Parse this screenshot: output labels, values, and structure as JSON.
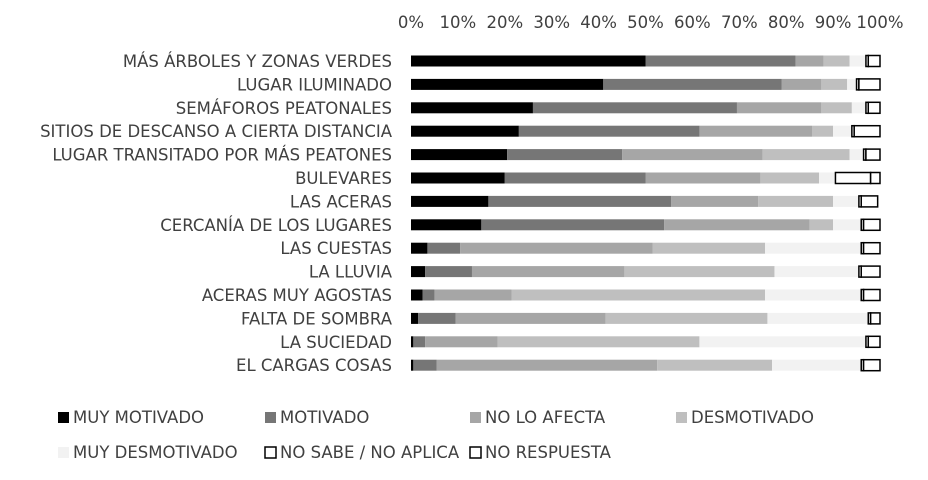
{
  "chart_data": {
    "type": "bar",
    "orientation": "horizontal",
    "stacked": "percent",
    "categories": [
      "MÁS ÁRBOLES Y ZONAS VERDES",
      "LUGAR ILUMINADO",
      "SEMÁFOROS PEATONALES",
      "SITIOS DE DESCANSO A CIERTA DISTANCIA",
      "LUGAR TRANSITADO POR MÁS PEATONES",
      "BULEVARES",
      "LAS ACERAS",
      "CERCANÍA DE LOS LUGARES",
      "LAS CUESTAS",
      "LA LLUVIA",
      "ACERAS MUY AGOSTAS",
      "FALTA DE SOMBRA",
      "LA SUCIEDAD",
      "EL CARGAS COSAS"
    ],
    "series": [
      {
        "name": "MUY MOTIVADO",
        "color": "#000000",
        "values": [
          50,
          41,
          26,
          23,
          20.5,
          20,
          16.5,
          15,
          3.5,
          3,
          2.5,
          1.5,
          0.5,
          0.5
        ]
      },
      {
        "name": "MOTIVADO",
        "color": "#767676",
        "values": [
          32,
          38,
          43.5,
          38.5,
          24.5,
          30,
          39,
          39,
          7,
          10,
          2.5,
          8,
          2.5,
          5
        ]
      },
      {
        "name": "NO LO AFECTA",
        "color": "#a6a6a6",
        "values": [
          6,
          8.5,
          18,
          24,
          30,
          24.5,
          18.5,
          31,
          41,
          32.5,
          16.5,
          32,
          15.5,
          47
        ]
      },
      {
        "name": "DESMOTIVADO",
        "color": "#bfbfbf",
        "values": [
          5.5,
          5.5,
          6.5,
          4.5,
          18.5,
          12.5,
          16,
          5,
          24,
          32,
          54,
          34.5,
          43,
          24.5
        ]
      },
      {
        "name": "MUY DESMOTIVADO",
        "color": "#f2f2f2",
        "values": [
          3.5,
          2,
          3,
          4,
          3,
          3.5,
          5.5,
          6,
          20.5,
          18,
          20.5,
          21.5,
          35.5,
          19
        ]
      },
      {
        "name": "NO SABE / NO APLICA",
        "color": "#ffffff",
        "values": [
          0.5,
          0.5,
          0.5,
          0.5,
          0.5,
          7.5,
          0.5,
          0.5,
          0.5,
          0.5,
          0.5,
          0.5,
          0.5,
          0.5
        ]
      },
      {
        "name": "NO RESPUESTA",
        "color": "#ffffff",
        "values": [
          2.5,
          4.5,
          2.5,
          5.5,
          3,
          2,
          3.5,
          3.5,
          3.5,
          4,
          3.5,
          2,
          2.5,
          3.5
        ]
      }
    ],
    "xlim": [
      0,
      100
    ],
    "x_ticks": [
      "0%",
      "10%",
      "20%",
      "30%",
      "40%",
      "50%",
      "60%",
      "70%",
      "80%",
      "90%",
      "100%"
    ],
    "x_axis_position": "top",
    "grid": false,
    "legend_position": "bottom"
  }
}
